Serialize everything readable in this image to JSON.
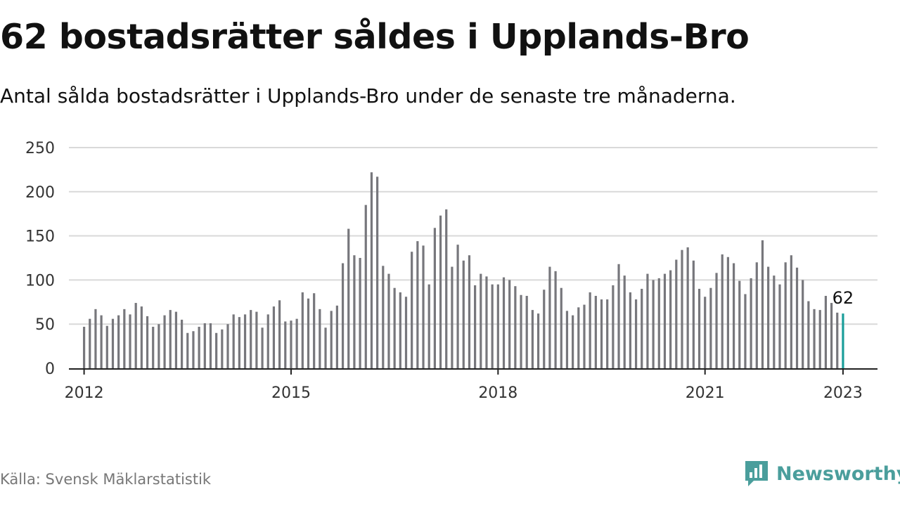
{
  "title": "62 bostadsrätter såldes i Upplands-Bro",
  "subtitle": "Antal sålda bostadsrätter i Upplands-Bro under de senaste tre månaderna.",
  "source": "Källa: Svensk Mäklarstatistik",
  "brand": "Newsworthy",
  "colors": {
    "bar": "#77777c",
    "highlight": "#1a9e9a",
    "grid": "#d9d9d9",
    "axis": "#222222",
    "brand": "#4a9e9c"
  },
  "chart_data": {
    "type": "bar",
    "ylim": [
      0,
      250
    ],
    "yticks": [
      0,
      50,
      100,
      150,
      200,
      250
    ],
    "x_range": [
      2011.78,
      2023.5
    ],
    "xticks": [
      2012,
      2015,
      2018,
      2021,
      2023
    ],
    "xtick_labels": [
      "2012",
      "2015",
      "2018",
      "2021",
      "2023"
    ],
    "grid": true,
    "x_start": 2012,
    "x_step": 0.0833333,
    "values": [
      47,
      56,
      67,
      60,
      48,
      56,
      60,
      67,
      61,
      74,
      70,
      59,
      47,
      50,
      60,
      66,
      64,
      55,
      40,
      42,
      47,
      51,
      51,
      40,
      44,
      50,
      61,
      58,
      61,
      66,
      64,
      46,
      61,
      70,
      77,
      53,
      54,
      56,
      86,
      79,
      85,
      67,
      46,
      65,
      71,
      119,
      158,
      128,
      125,
      185,
      222,
      217,
      116,
      107,
      91,
      86,
      81,
      132,
      144,
      139,
      95,
      159,
      173,
      180,
      115,
      140,
      122,
      128,
      94,
      107,
      104,
      95,
      95,
      103,
      100,
      93,
      83,
      82,
      66,
      62,
      89,
      115,
      110,
      91,
      65,
      60,
      69,
      72,
      86,
      82,
      78,
      78,
      94,
      118,
      105,
      86,
      78,
      90,
      107,
      100,
      102,
      107,
      111,
      123,
      134,
      137,
      122,
      90,
      81,
      91,
      108,
      129,
      126,
      119,
      99,
      84,
      102,
      120,
      145,
      115,
      105,
      95,
      120,
      128,
      114,
      100,
      76,
      67,
      66,
      82,
      74,
      63,
      62
    ],
    "highlight_label": "62"
  }
}
